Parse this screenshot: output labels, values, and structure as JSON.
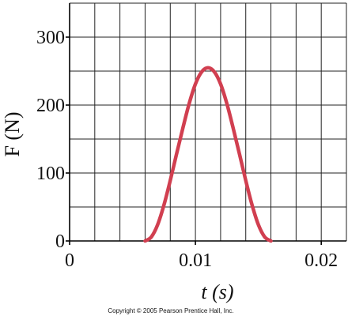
{
  "chart_data": {
    "type": "line",
    "x_label": "t (s)",
    "y_label": "F (N)",
    "footer": "Copyright © 2005 Pearson Prentice Hall, Inc.",
    "x": [
      0.006,
      0.0065,
      0.007,
      0.0075,
      0.008,
      0.0085,
      0.009,
      0.0095,
      0.01,
      0.0105,
      0.011,
      0.0115,
      0.012,
      0.0125,
      0.013,
      0.0135,
      0.014,
      0.0145,
      0.015,
      0.0155,
      0.016
    ],
    "series": [
      {
        "color": "#d13f50",
        "values": [
          0,
          6,
          24,
          53,
          89,
          128,
          166,
          202,
          231,
          249,
          255,
          249,
          231,
          202,
          166,
          128,
          89,
          53,
          24,
          6,
          0
        ]
      }
    ],
    "xlim": [
      0,
      0.022
    ],
    "ylim": [
      0,
      350
    ],
    "xticks": [
      0,
      0.01,
      0.02
    ],
    "yticks": [
      0,
      100,
      200,
      300
    ],
    "xgrid": [
      0.002,
      0.004,
      0.006,
      0.008,
      0.01,
      0.012,
      0.014,
      0.016,
      0.018,
      0.02,
      0.022
    ],
    "ygrid": [
      50,
      100,
      150,
      200,
      250,
      300,
      350
    ],
    "grid": true
  }
}
